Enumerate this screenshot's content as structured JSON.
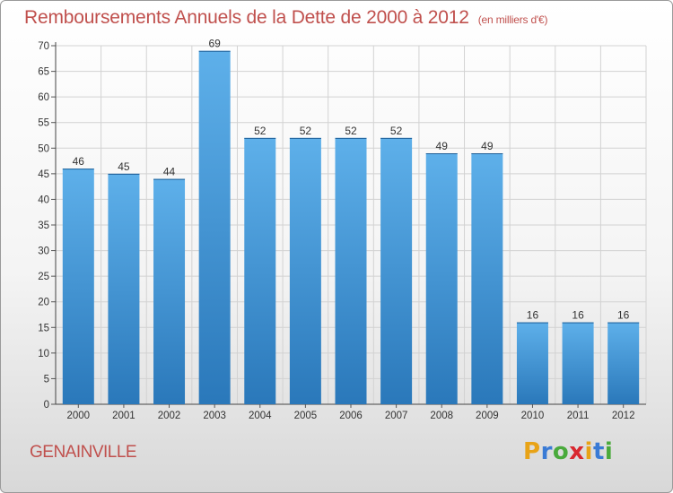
{
  "title": "Remboursements Annuels de la Dette de 2000 à 2012",
  "unit_note": "(en milliers d'€)",
  "commune": "GENAINVILLE",
  "logo": {
    "letters": [
      "P",
      "r",
      "o",
      "x",
      "i",
      "t",
      "i"
    ],
    "colors": [
      "#e8a317",
      "#3a7bd5",
      "#4aaa3c",
      "#d9282f",
      "#e8a317",
      "#3a7bd5",
      "#4aaa3c"
    ]
  },
  "colors": {
    "title": "#c0504d",
    "bar_top": "#5eb0ea",
    "bar_bottom": "#2a78ba"
  },
  "chart_data": {
    "type": "bar",
    "title": "Remboursements Annuels de la Dette de 2000 à 2012",
    "categories": [
      "2000",
      "2001",
      "2002",
      "2003",
      "2004",
      "2005",
      "2006",
      "2007",
      "2008",
      "2009",
      "2010",
      "2011",
      "2012"
    ],
    "values": [
      46,
      45,
      44,
      69,
      52,
      52,
      52,
      52,
      49,
      49,
      16,
      16,
      16
    ],
    "xlabel": "",
    "ylabel": "",
    "ylim": [
      0,
      70
    ],
    "yticks": [
      0,
      5,
      10,
      15,
      20,
      25,
      30,
      35,
      40,
      45,
      50,
      55,
      60,
      65,
      70
    ],
    "grid": true,
    "data_labels": true
  }
}
